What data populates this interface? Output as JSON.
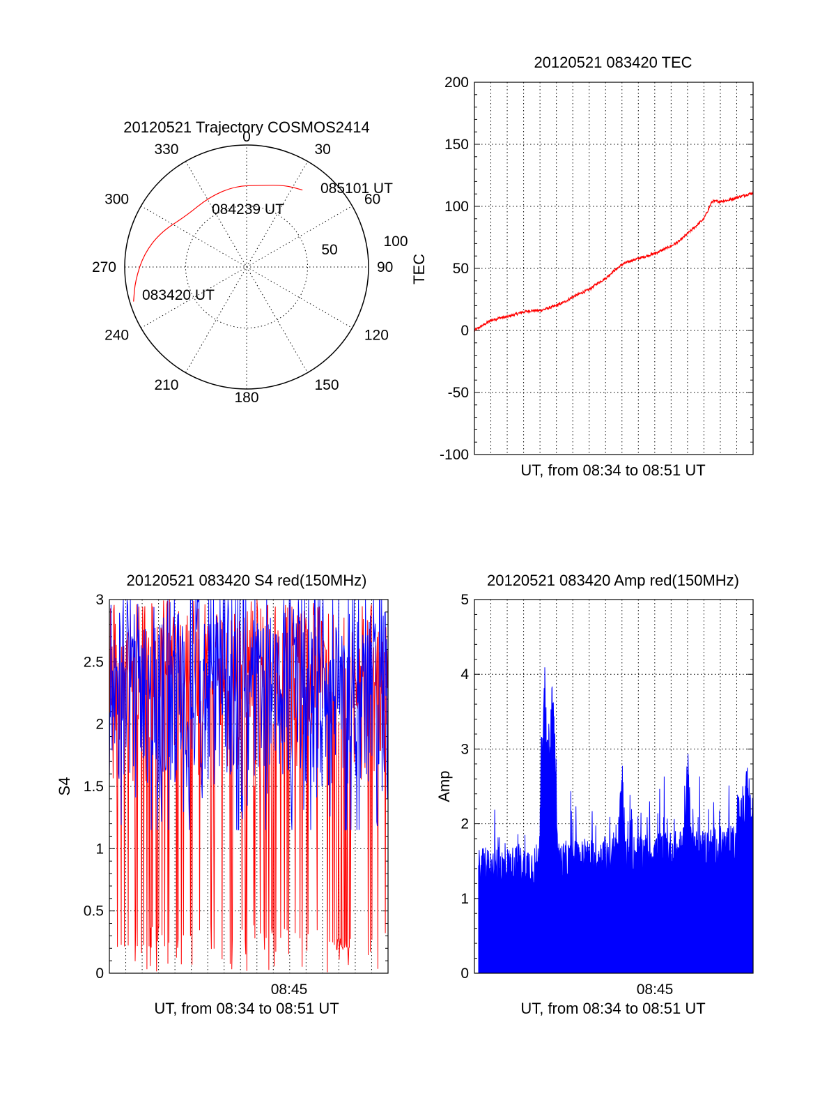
{
  "colors": {
    "red": "#ff0000",
    "blue": "#0000ff",
    "axis": "#000000"
  },
  "chart_data": [
    {
      "type": "polar",
      "title": "20120521 Trajectory COSMOS2414",
      "azimuth_labels": [
        "0",
        "30",
        "60",
        "90",
        "120",
        "150",
        "180",
        "210",
        "240",
        "270",
        "300",
        "330"
      ],
      "elevation_labels": [
        "50",
        "100"
      ],
      "trajectory": {
        "color": "red",
        "points": [
          {
            "az": 253,
            "r": 0.97
          },
          {
            "az": 263,
            "r": 0.92
          },
          {
            "az": 277,
            "r": 0.85
          },
          {
            "az": 292,
            "r": 0.76
          },
          {
            "az": 310,
            "r": 0.65
          },
          {
            "az": 332,
            "r": 0.65
          },
          {
            "az": 352,
            "r": 0.67
          },
          {
            "az": 10,
            "r": 0.68
          },
          {
            "az": 25,
            "r": 0.74
          },
          {
            "az": 36,
            "r": 0.78
          }
        ]
      },
      "annotations": [
        {
          "text": "085101 UT",
          "az": 36,
          "r": 0.78
        },
        {
          "text": "084239 UT",
          "az": 320,
          "r": 0.63
        },
        {
          "text": "083420 UT",
          "az": 253,
          "r": 0.97
        }
      ]
    },
    {
      "type": "line",
      "title": "20120521 083420 TEC",
      "xlabel": "UT, from 08:34 to 08:51 UT",
      "ylabel": "TEC",
      "xlim": [
        0,
        17
      ],
      "ylim": [
        -100,
        200
      ],
      "yticks": [
        "200",
        "150",
        "100",
        "50",
        "0",
        "-50",
        "-100"
      ],
      "grid": true,
      "series": [
        {
          "color": "red",
          "x": [
            0,
            0.5,
            1,
            1.5,
            2,
            2.5,
            3,
            3.5,
            4,
            4.5,
            5,
            5.5,
            6,
            6.5,
            7,
            7.5,
            8,
            8.5,
            9,
            9.5,
            10,
            10.5,
            11,
            11.5,
            12,
            12.5,
            13,
            13.5,
            14,
            14.5,
            15,
            15.5,
            16,
            16.5,
            17
          ],
          "y": [
            0,
            4,
            8,
            10,
            11,
            13,
            15,
            16,
            16,
            18,
            20,
            23,
            27,
            30,
            33,
            38,
            42,
            48,
            53,
            56,
            58,
            60,
            62,
            65,
            68,
            72,
            78,
            84,
            90,
            104,
            104,
            105,
            107,
            109,
            111
          ]
        }
      ]
    },
    {
      "type": "line",
      "title": "20120521 083420 S4 red(150MHz)",
      "xlabel": "UT, from 08:34 to 08:51 UT",
      "ylabel": "S4",
      "xlim": [
        0,
        17
      ],
      "ylim": [
        0,
        3
      ],
      "yticks": [
        "3",
        "2.5",
        "2",
        "1.5",
        "1",
        "0.5",
        "0"
      ],
      "xtick_label": "08:45",
      "grid": true,
      "series": [
        {
          "color": "red",
          "description_range": [
            0,
            3
          ]
        },
        {
          "color": "blue",
          "description_range": [
            1.4,
            3
          ]
        }
      ]
    },
    {
      "type": "bar",
      "title": "20120521 083420 Amp red(150MHz)",
      "xlabel": "UT, from 08:34 to 08:51 UT",
      "ylabel": "Amp",
      "xlim": [
        0,
        17
      ],
      "ylim": [
        0,
        5
      ],
      "yticks": [
        "5",
        "4",
        "3",
        "2",
        "1",
        "0"
      ],
      "xtick_label": "08:45",
      "grid": true,
      "series": [
        {
          "color": "blue",
          "peaks": [
            {
              "x": 4.3,
              "y": 4.15
            },
            {
              "x": 4.75,
              "y": 4.15
            },
            {
              "x": 13.0,
              "y": 3.15
            },
            {
              "x": 16.6,
              "y": 3.15
            },
            {
              "x": 9.0,
              "y": 2.95
            }
          ]
        }
      ]
    }
  ]
}
